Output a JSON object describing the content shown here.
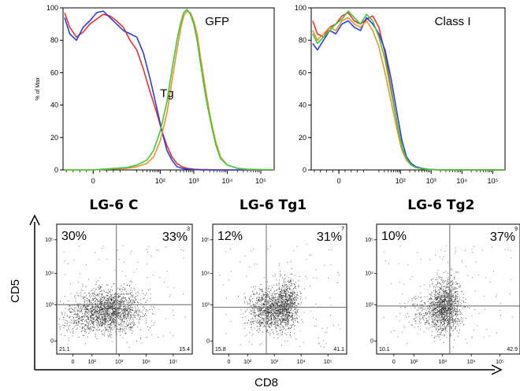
{
  "chart_data": [
    {
      "type": "line",
      "panel": "histogram-gfp",
      "annotation": "GFP",
      "ylabel": "% of Max",
      "yticks": [
        "0",
        "20",
        "40",
        "60",
        "80",
        "100"
      ],
      "xticks": [
        "0",
        "10²",
        "10³",
        "10⁴",
        "10⁵"
      ],
      "ylim": [
        0,
        100
      ],
      "xlim_decades": [
        -0.9,
        5.4
      ],
      "series": [
        {
          "color": "#e8322b",
          "label": "",
          "x": [
            -0.85,
            -0.7,
            -0.5,
            -0.3,
            -0.1,
            0.1,
            0.3,
            0.5,
            0.7,
            0.9,
            1.1,
            1.3,
            1.5,
            1.7,
            1.9,
            2.05,
            2.2,
            2.35,
            2.5,
            2.65,
            2.8,
            3.0,
            3.2,
            3.4,
            3.6,
            5.4
          ],
          "y": [
            97,
            88,
            82,
            85,
            90,
            93,
            96,
            95,
            92,
            88,
            80,
            74,
            62,
            48,
            35,
            24,
            15,
            8,
            4,
            2,
            1,
            0.5,
            0.3,
            0.2,
            0,
            0
          ]
        },
        {
          "color": "#2b3ee0",
          "label": "",
          "x": [
            -0.85,
            -0.7,
            -0.5,
            -0.3,
            -0.1,
            0.1,
            0.3,
            0.5,
            0.7,
            0.9,
            1.1,
            1.3,
            1.5,
            1.7,
            1.9,
            2.05,
            2.2,
            2.35,
            2.5,
            2.65,
            2.8,
            3.0,
            3.2,
            5.4
          ],
          "y": [
            94,
            84,
            80,
            88,
            92,
            97,
            98,
            94,
            90,
            86,
            84,
            82,
            72,
            56,
            38,
            24,
            12,
            6,
            2,
            1,
            0.5,
            0.2,
            0,
            0
          ]
        },
        {
          "color": "#f0902c",
          "label": "Tg",
          "x": [
            -0.85,
            -0.5,
            0,
            0.5,
            1.0,
            1.3,
            1.6,
            1.8,
            2.0,
            2.2,
            2.35,
            2.5,
            2.6,
            2.7,
            2.8,
            2.9,
            3.0,
            3.1,
            3.2,
            3.35,
            3.5,
            3.65,
            3.8,
            4.0,
            4.3,
            4.6,
            5.4
          ],
          "y": [
            0,
            0,
            0,
            0.5,
            1,
            2,
            4,
            8,
            18,
            35,
            55,
            74,
            86,
            95,
            98,
            97,
            92,
            84,
            70,
            50,
            32,
            18,
            8,
            3,
            1,
            0.3,
            0
          ]
        },
        {
          "color": "#3ec73a",
          "label": "",
          "x": [
            -0.85,
            -0.5,
            0,
            0.5,
            1.0,
            1.3,
            1.6,
            1.8,
            2.0,
            2.2,
            2.35,
            2.5,
            2.6,
            2.7,
            2.8,
            2.9,
            3.0,
            3.1,
            3.2,
            3.35,
            3.5,
            3.65,
            3.8,
            4.0,
            4.3,
            4.6,
            5.4
          ],
          "y": [
            0,
            0,
            0,
            0.8,
            1.5,
            3,
            6,
            12,
            24,
            42,
            62,
            80,
            90,
            97,
            99,
            96,
            90,
            80,
            66,
            46,
            30,
            16,
            7,
            3,
            1,
            0.5,
            0
          ]
        }
      ]
    },
    {
      "type": "line",
      "panel": "histogram-class-i",
      "annotation": "Class I",
      "yticks": [
        "0",
        "20",
        "40",
        "60",
        "80",
        "100"
      ],
      "xticks": [
        "0",
        "10²",
        "10³",
        "10⁴",
        "10⁵"
      ],
      "ylim": [
        0,
        100
      ],
      "xlim_decades": [
        -0.9,
        5.4
      ],
      "series": [
        {
          "color": "#e8322b",
          "x": [
            -0.85,
            -0.7,
            -0.5,
            -0.3,
            -0.1,
            0.1,
            0.3,
            0.5,
            0.7,
            0.9,
            1.1,
            1.3,
            1.5,
            1.7,
            1.9,
            2.05,
            2.2,
            2.35,
            2.5,
            2.7,
            2.9,
            3.2,
            5.4
          ],
          "y": [
            92,
            84,
            82,
            88,
            90,
            95,
            97,
            92,
            90,
            93,
            95,
            88,
            72,
            50,
            28,
            14,
            6,
            3,
            1.5,
            0.8,
            0.3,
            0.1,
            0
          ]
        },
        {
          "color": "#2b3ee0",
          "x": [
            -0.85,
            -0.7,
            -0.5,
            -0.3,
            -0.1,
            0.1,
            0.3,
            0.5,
            0.7,
            0.9,
            1.1,
            1.3,
            1.5,
            1.7,
            1.9,
            2.05,
            2.2,
            2.35,
            2.5,
            2.7,
            2.9,
            3.2,
            5.4
          ],
          "y": [
            78,
            74,
            80,
            86,
            84,
            90,
            92,
            88,
            86,
            94,
            90,
            84,
            74,
            56,
            34,
            18,
            8,
            4,
            2,
            1,
            0.4,
            0.1,
            0
          ]
        },
        {
          "color": "#f0902c",
          "x": [
            -0.85,
            -0.7,
            -0.5,
            -0.3,
            -0.1,
            0.1,
            0.3,
            0.5,
            0.7,
            0.9,
            1.1,
            1.3,
            1.5,
            1.7,
            1.9,
            2.05,
            2.2,
            2.35,
            2.5,
            2.7,
            2.9,
            3.2,
            5.4
          ],
          "y": [
            86,
            80,
            84,
            88,
            86,
            92,
            94,
            90,
            88,
            92,
            86,
            76,
            60,
            42,
            24,
            12,
            6,
            3,
            1.5,
            0.8,
            0.3,
            0.1,
            0
          ]
        },
        {
          "color": "#3ec73a",
          "x": [
            -0.85,
            -0.7,
            -0.5,
            -0.3,
            -0.1,
            0.1,
            0.3,
            0.5,
            0.7,
            0.9,
            1.1,
            1.3,
            1.5,
            1.7,
            1.9,
            2.05,
            2.2,
            2.35,
            2.5,
            2.7,
            2.9,
            3.2,
            5.4
          ],
          "y": [
            84,
            78,
            82,
            86,
            90,
            93,
            98,
            94,
            90,
            96,
            92,
            82,
            68,
            48,
            28,
            14,
            7,
            3,
            1.5,
            0.8,
            0.3,
            0.1,
            0
          ]
        }
      ]
    },
    {
      "type": "scatter",
      "panel": "dotplot-lg6-c",
      "title": "LG-6 C",
      "quadrants": {
        "upper_left": "30%",
        "upper_right": "33%",
        "lower_left": "21.1",
        "lower_right": "15.4",
        "corner": "3"
      },
      "xticks": [
        "0",
        "10²",
        "10³",
        "10⁴",
        "10⁵"
      ],
      "yticks": [
        "0",
        "10³",
        "10⁴",
        "10⁵"
      ]
    },
    {
      "type": "scatter",
      "panel": "dotplot-lg6-tg1",
      "title": "LG-6 Tg1",
      "quadrants": {
        "upper_left": "12%",
        "upper_right": "31%",
        "lower_left": "15.8",
        "lower_right": "41.1",
        "corner": "7"
      },
      "xticks": [
        "0",
        "10²",
        "10³",
        "10⁴",
        "10⁵"
      ],
      "yticks": [
        "0",
        "10³",
        "10⁴",
        "10⁵"
      ]
    },
    {
      "type": "scatter",
      "panel": "dotplot-lg6-tg2",
      "title": "LG-6 Tg2",
      "quadrants": {
        "upper_left": "10%",
        "upper_right": "37%",
        "lower_left": "10.1",
        "lower_right": "42.9",
        "corner": "9"
      },
      "xticks": [
        "0",
        "10²",
        "10³",
        "10⁴",
        "10⁵"
      ],
      "yticks": [
        "0",
        "10³",
        "10⁴",
        "10⁵"
      ]
    }
  ],
  "axes": {
    "dotplot_ylabel": "CD5",
    "dotplot_xlabel": "CD8"
  },
  "colors": {
    "red": "#e8322b",
    "blue": "#2b3ee0",
    "orange": "#f0902c",
    "green": "#3ec73a",
    "axis": "#000000",
    "gate": "#777777",
    "dots": "#222222"
  }
}
